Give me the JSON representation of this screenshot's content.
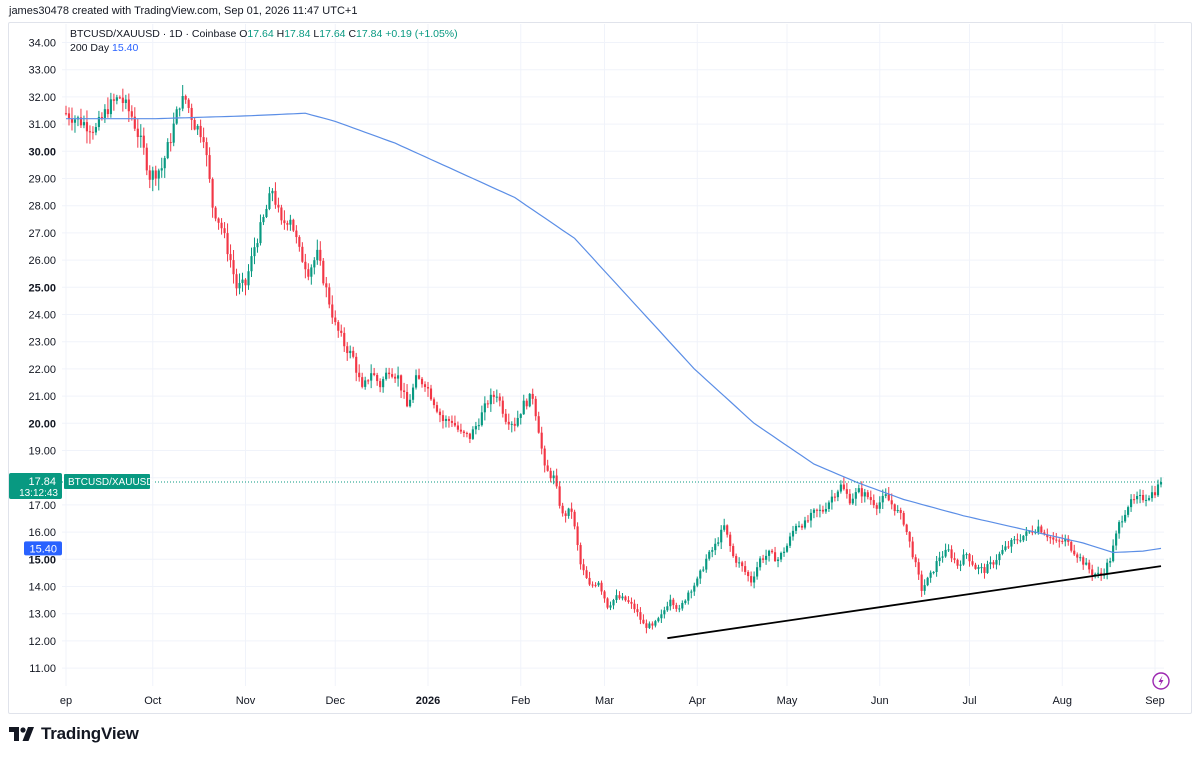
{
  "header": {
    "created_by": "james30478 created with TradingView.com, Sep 01, 2026 11:47 UTC+1"
  },
  "legend": {
    "symbol_line": "BTCUSD/XAUUSD · 1D · Coinbase",
    "open_label": "O",
    "open": "17.64",
    "high_label": "H",
    "high": "17.84",
    "low_label": "L",
    "low": "17.64",
    "close_label": "C",
    "close": "17.84",
    "change": "+0.19 (+1.05%)",
    "ma_label": "200 Day",
    "ma_value": "15.40"
  },
  "price_tag": {
    "price": "17.84",
    "countdown": "13:12:43",
    "symbol": "BTCUSD/XAUUSD",
    "ma_price": "15.40"
  },
  "footer": {
    "brand": "TradingView"
  },
  "colors": {
    "up": "#089981",
    "down": "#f23645",
    "ma": "#5b8ee6",
    "ma_tag": "#2962ff",
    "trendline": "#000000",
    "grid": "#f0f3fa"
  },
  "chart_data": {
    "type": "candlestick",
    "y_ticks": [
      "34.00",
      "33.00",
      "32.00",
      "31.00",
      "30.00",
      "29.00",
      "28.00",
      "27.00",
      "26.00",
      "25.00",
      "24.00",
      "23.00",
      "22.00",
      "21.00",
      "20.00",
      "19.00",
      "18.00",
      "17.00",
      "16.00",
      "15.00",
      "14.00",
      "13.00",
      "12.00",
      "11.00"
    ],
    "bold_ticks": [
      "30.00",
      "25.00",
      "20.00",
      "15.00"
    ],
    "ylim": [
      10.5,
      34.5
    ],
    "x_ticks": [
      "ep",
      "Oct",
      "Nov",
      "Dec",
      "2026",
      "Feb",
      "Mar",
      "Apr",
      "May",
      "Jun",
      "Jul",
      "Aug",
      "Sep"
    ],
    "bold_x_ticks": [
      "2026"
    ],
    "close_anchors": [
      [
        0,
        31.4
      ],
      [
        5,
        31.1
      ],
      [
        10,
        30.8
      ],
      [
        14,
        31.6
      ],
      [
        18,
        32.0
      ],
      [
        22,
        31.3
      ],
      [
        26,
        30.0
      ],
      [
        28,
        29.1
      ],
      [
        32,
        29.4
      ],
      [
        35,
        30.5
      ],
      [
        38,
        31.8
      ],
      [
        40,
        31.9
      ],
      [
        43,
        31.0
      ],
      [
        46,
        30.6
      ],
      [
        49,
        28.0
      ],
      [
        52,
        27.2
      ],
      [
        55,
        26.0
      ],
      [
        57,
        25.0
      ],
      [
        60,
        25.1
      ],
      [
        63,
        26.5
      ],
      [
        66,
        27.5
      ],
      [
        69,
        28.6
      ],
      [
        72,
        27.3
      ],
      [
        75,
        27.6
      ],
      [
        78,
        26.3
      ],
      [
        81,
        25.6
      ],
      [
        84,
        26.2
      ],
      [
        87,
        24.9
      ],
      [
        90,
        23.6
      ],
      [
        93,
        22.9
      ],
      [
        96,
        22.4
      ],
      [
        99,
        21.2
      ],
      [
        102,
        21.9
      ],
      [
        105,
        21.4
      ],
      [
        108,
        22.0
      ],
      [
        111,
        21.7
      ],
      [
        114,
        20.6
      ],
      [
        117,
        21.6
      ],
      [
        120,
        21.5
      ],
      [
        123,
        20.8
      ],
      [
        126,
        20.1
      ],
      [
        129,
        20.1
      ],
      [
        132,
        19.6
      ],
      [
        135,
        19.5
      ],
      [
        138,
        20.1
      ],
      [
        141,
        20.8
      ],
      [
        144,
        21.1
      ],
      [
        147,
        20.2
      ],
      [
        150,
        20.0
      ],
      [
        153,
        20.7
      ],
      [
        156,
        21.0
      ],
      [
        158,
        19.8
      ],
      [
        160,
        18.3
      ],
      [
        163,
        18.0
      ],
      [
        166,
        16.6
      ],
      [
        169,
        16.8
      ],
      [
        172,
        14.8
      ],
      [
        175,
        14.0
      ],
      [
        178,
        14.2
      ],
      [
        181,
        13.3
      ],
      [
        184,
        13.6
      ],
      [
        187,
        13.5
      ],
      [
        190,
        13.2
      ],
      [
        193,
        12.6
      ],
      [
        196,
        12.5
      ],
      [
        199,
        12.9
      ],
      [
        202,
        13.6
      ],
      [
        205,
        13.1
      ],
      [
        208,
        13.8
      ],
      [
        211,
        14.2
      ],
      [
        214,
        15.0
      ],
      [
        217,
        15.5
      ],
      [
        220,
        16.2
      ],
      [
        223,
        15.1
      ],
      [
        226,
        14.7
      ],
      [
        229,
        14.2
      ],
      [
        232,
        15.0
      ],
      [
        235,
        15.2
      ],
      [
        238,
        15.0
      ],
      [
        241,
        15.5
      ],
      [
        244,
        16.3
      ],
      [
        247,
        16.3
      ],
      [
        250,
        16.7
      ],
      [
        253,
        16.8
      ],
      [
        256,
        17.3
      ],
      [
        259,
        17.7
      ],
      [
        262,
        17.2
      ],
      [
        265,
        17.5
      ],
      [
        268,
        17.3
      ],
      [
        271,
        17.0
      ],
      [
        274,
        17.3
      ],
      [
        277,
        16.9
      ],
      [
        280,
        16.4
      ],
      [
        283,
        15.2
      ],
      [
        286,
        13.9
      ],
      [
        289,
        14.4
      ],
      [
        292,
        15.1
      ],
      [
        295,
        15.3
      ],
      [
        298,
        14.8
      ],
      [
        301,
        15.2
      ],
      [
        304,
        14.7
      ],
      [
        307,
        14.6
      ],
      [
        310,
        14.9
      ],
      [
        313,
        15.3
      ],
      [
        316,
        15.6
      ],
      [
        319,
        15.8
      ],
      [
        322,
        16.0
      ],
      [
        325,
        16.2
      ],
      [
        328,
        15.9
      ],
      [
        331,
        15.6
      ],
      [
        334,
        15.7
      ],
      [
        337,
        15.3
      ],
      [
        340,
        14.9
      ],
      [
        343,
        14.5
      ],
      [
        346,
        14.4
      ],
      [
        349,
        15.0
      ],
      [
        352,
        16.3
      ],
      [
        355,
        17.0
      ],
      [
        358,
        17.2
      ],
      [
        361,
        17.3
      ],
      [
        364,
        17.5
      ],
      [
        366,
        17.84
      ]
    ],
    "ma_200": [
      [
        0,
        31.2
      ],
      [
        30,
        31.2
      ],
      [
        60,
        31.3
      ],
      [
        80,
        31.4
      ],
      [
        90,
        31.1
      ],
      [
        110,
        30.3
      ],
      [
        130,
        29.3
      ],
      [
        150,
        28.3
      ],
      [
        170,
        26.8
      ],
      [
        190,
        24.4
      ],
      [
        210,
        22.0
      ],
      [
        230,
        20.0
      ],
      [
        250,
        18.5
      ],
      [
        265,
        17.8
      ],
      [
        280,
        17.2
      ],
      [
        300,
        16.6
      ],
      [
        320,
        16.1
      ],
      [
        340,
        15.6
      ],
      [
        350,
        15.25
      ],
      [
        360,
        15.3
      ],
      [
        366,
        15.4
      ]
    ],
    "trendline": {
      "start": [
        201,
        12.1
      ],
      "end": [
        366,
        14.75
      ]
    },
    "last_price": 17.84,
    "ma_last": 15.4
  }
}
